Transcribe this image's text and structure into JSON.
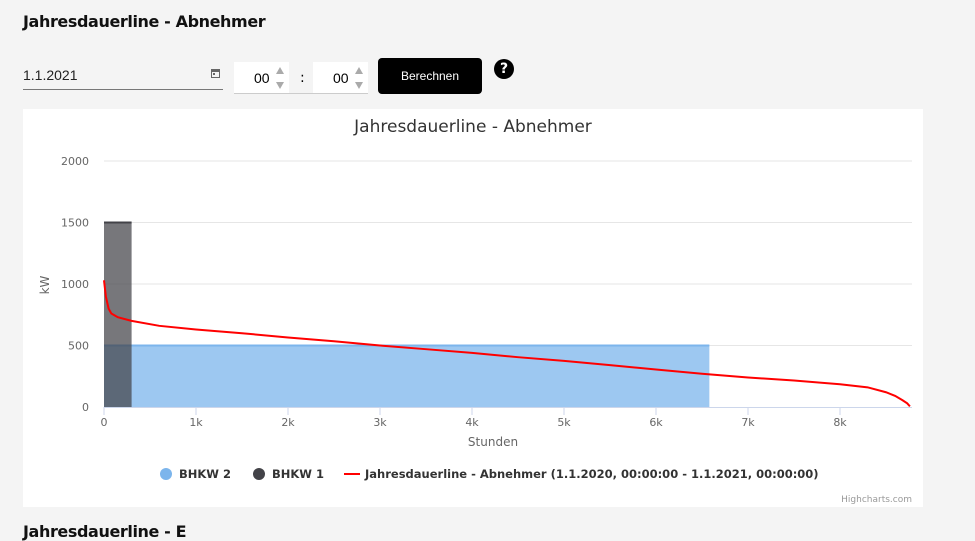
{
  "page": {
    "heading": "Jahresdauerline - Abnehmer",
    "next_heading": "Jahresdauerline - E"
  },
  "controls": {
    "date_value": "1.1.2021",
    "hour_value": "00",
    "minute_value": "00",
    "separator": ":",
    "calculate_label": "Berechnen",
    "help_label": "?"
  },
  "chart_data": {
    "type": "area",
    "title": "Jahresdauerline - Abnehmer",
    "xlabel": "Stunden",
    "ylabel": "kW",
    "xlim": [
      0,
      8760
    ],
    "ylim": [
      0,
      2000
    ],
    "x_ticks": [
      "0",
      "1k",
      "2k",
      "3k",
      "4k",
      "5k",
      "6k",
      "7k",
      "8k"
    ],
    "x_tick_values": [
      0,
      1000,
      2000,
      3000,
      4000,
      5000,
      6000,
      7000,
      8000
    ],
    "y_ticks": [
      "0",
      "500",
      "1000",
      "1500",
      "2000"
    ],
    "y_tick_values": [
      0,
      500,
      1000,
      1500,
      2000
    ],
    "grid": true,
    "legend_position": "bottom",
    "credits": "Highcharts.com",
    "series": [
      {
        "name": "BHKW 2",
        "type": "area",
        "color": "#7cb5ec",
        "points": [
          [
            0,
            500
          ],
          [
            6580,
            500
          ]
        ]
      },
      {
        "name": "BHKW 1",
        "type": "area",
        "color": "#434348",
        "points": [
          [
            0,
            1500
          ],
          [
            300,
            1500
          ]
        ]
      },
      {
        "name": "Jahresdauerline - Abnehmer (1.1.2020, 00:00:00 - 1.1.2021, 00:00:00)",
        "type": "line",
        "color": "#ff0000",
        "points": [
          [
            0,
            1030
          ],
          [
            20,
            900
          ],
          [
            50,
            800
          ],
          [
            80,
            760
          ],
          [
            150,
            730
          ],
          [
            300,
            700
          ],
          [
            600,
            660
          ],
          [
            1000,
            630
          ],
          [
            1500,
            600
          ],
          [
            2000,
            565
          ],
          [
            2500,
            535
          ],
          [
            3000,
            500
          ],
          [
            3500,
            470
          ],
          [
            4000,
            440
          ],
          [
            4500,
            405
          ],
          [
            5000,
            375
          ],
          [
            5500,
            340
          ],
          [
            6000,
            305
          ],
          [
            6500,
            270
          ],
          [
            7000,
            240
          ],
          [
            7500,
            215
          ],
          [
            8000,
            185
          ],
          [
            8300,
            160
          ],
          [
            8500,
            120
          ],
          [
            8600,
            90
          ],
          [
            8680,
            55
          ],
          [
            8730,
            30
          ],
          [
            8760,
            5
          ]
        ]
      }
    ]
  }
}
